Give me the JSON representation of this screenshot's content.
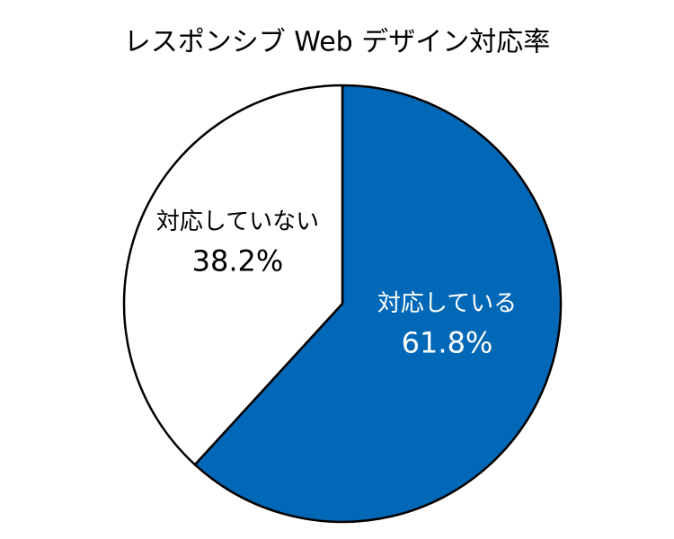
{
  "chart_data": {
    "type": "pie",
    "title": "レスポンシブ Web デザイン対応率",
    "categories": [
      "対応している",
      "対応していない"
    ],
    "values": [
      61.8,
      38.2
    ],
    "value_labels": [
      "61.8%",
      "38.2%"
    ],
    "colors": [
      "#0068b7",
      "#ffffff"
    ]
  }
}
